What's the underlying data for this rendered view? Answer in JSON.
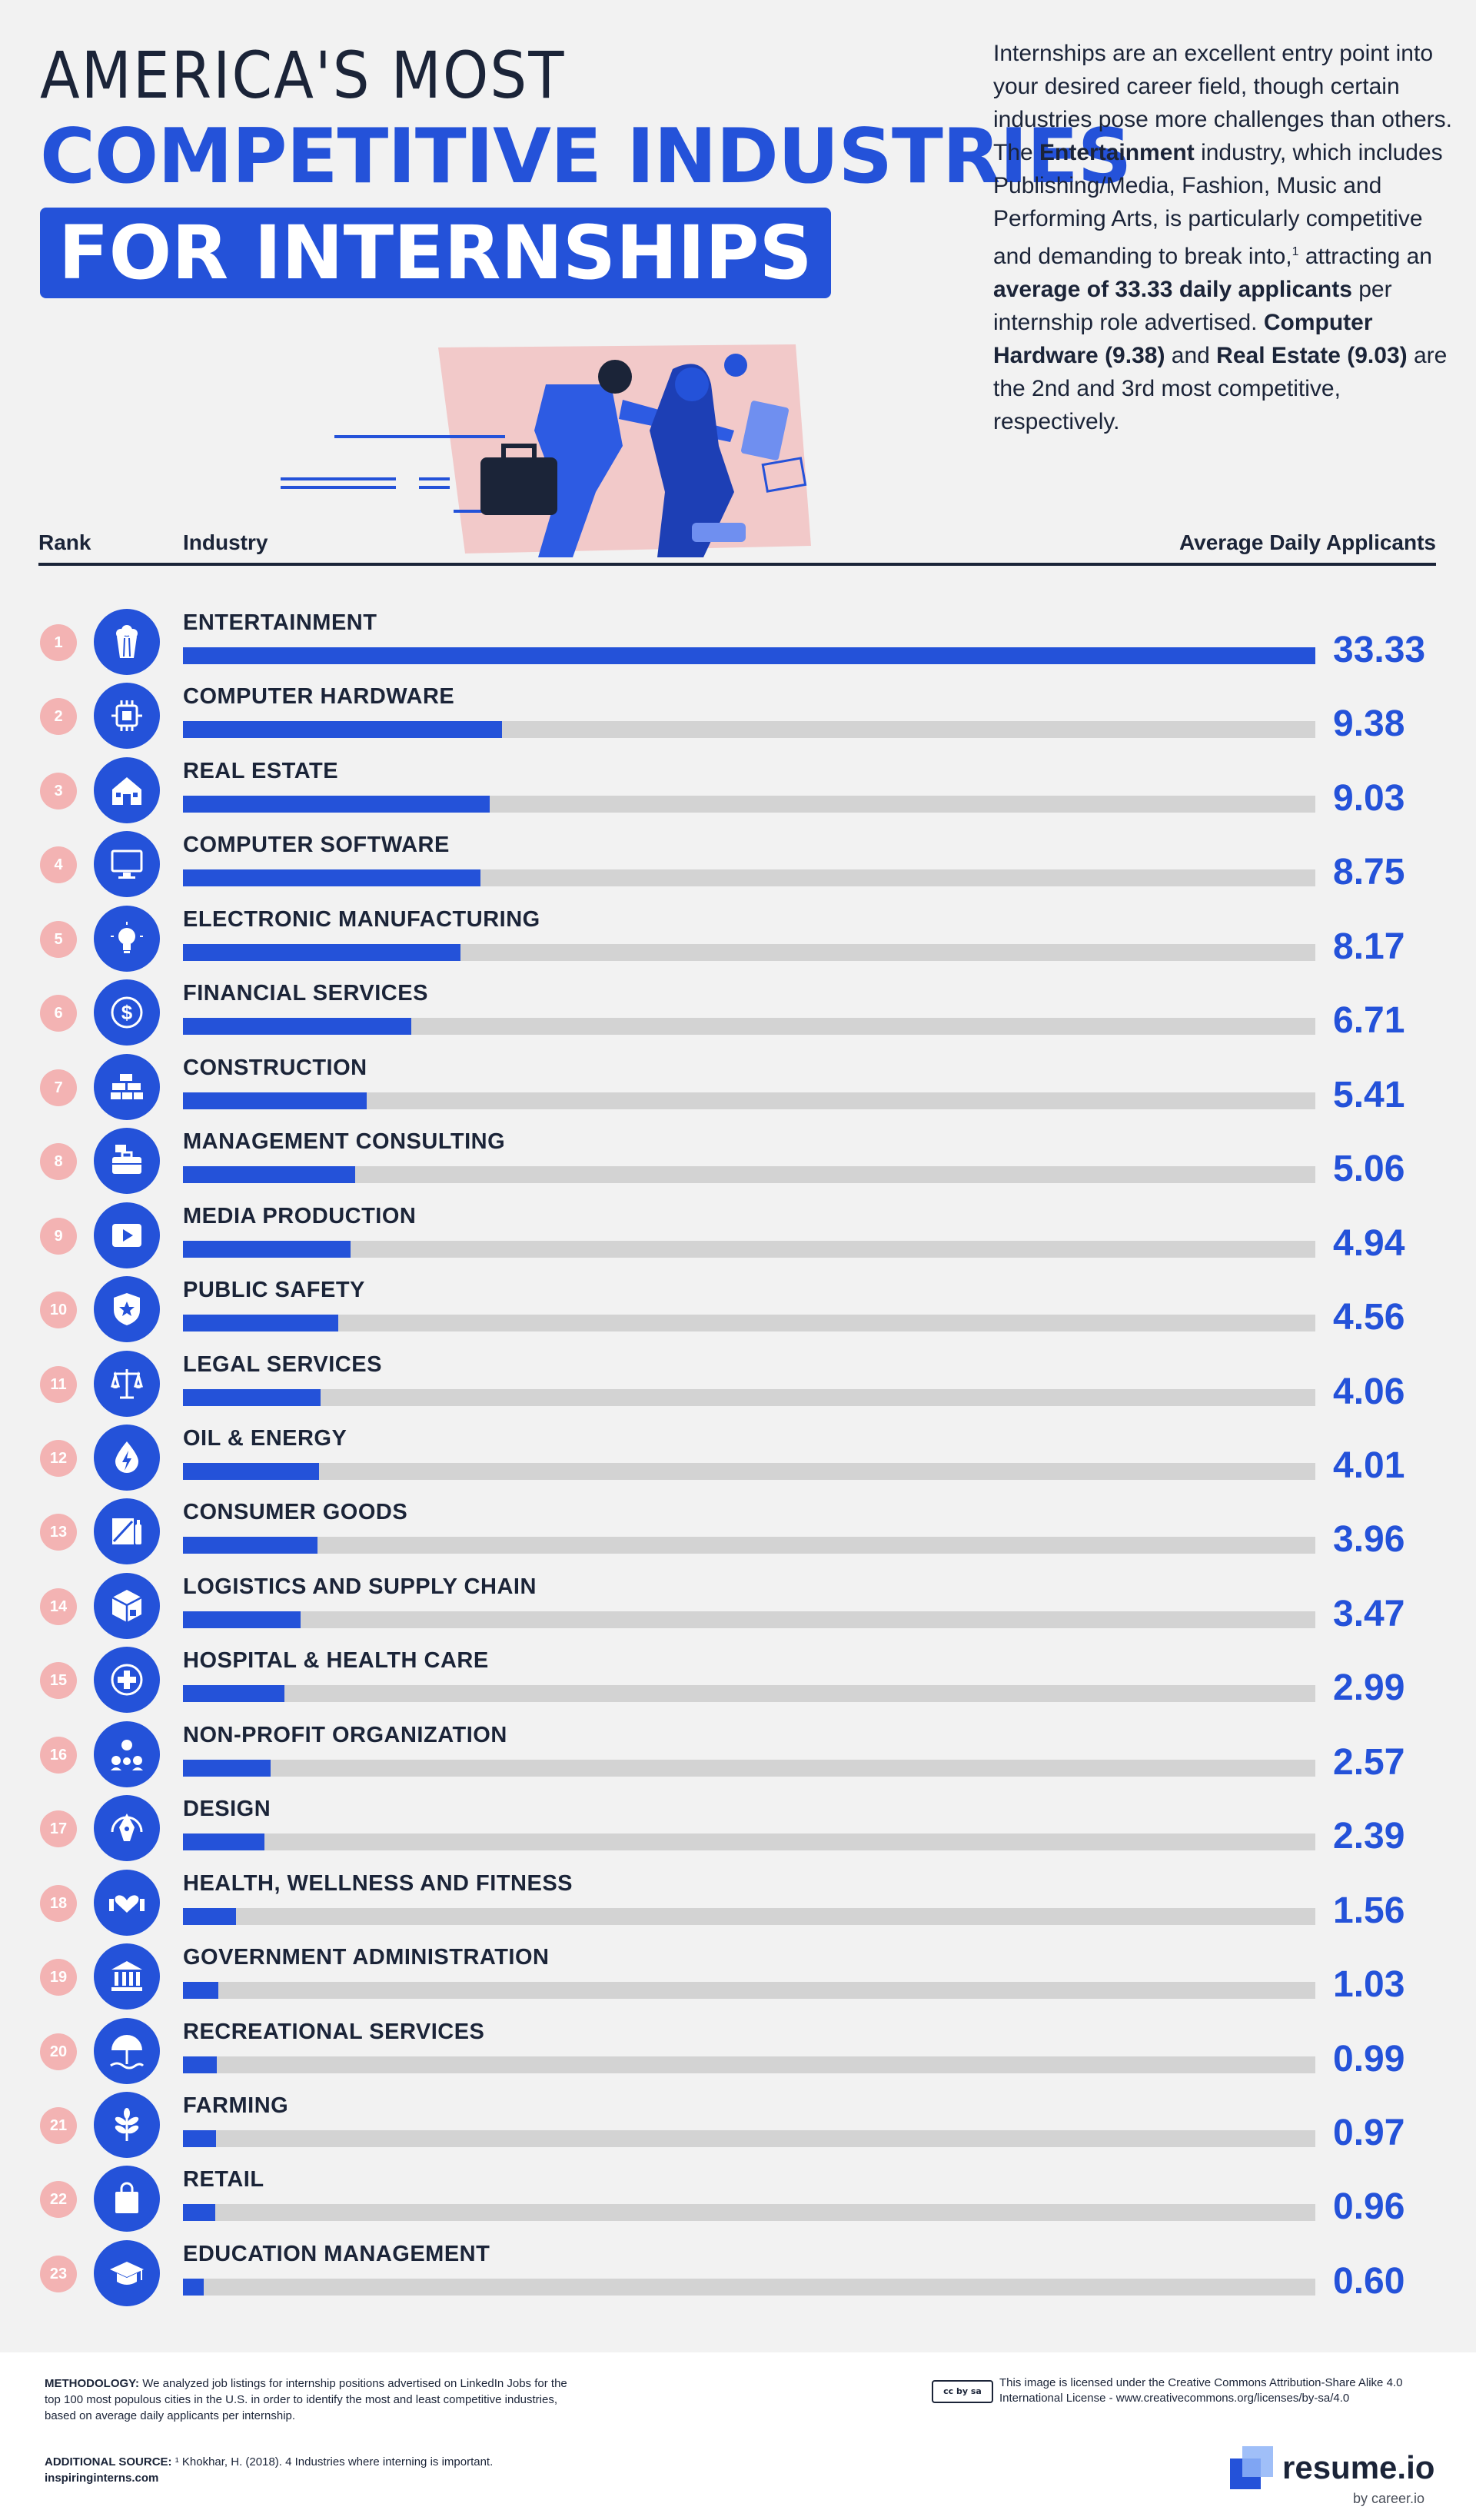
{
  "title": {
    "line1": "AMERICA'S MOST",
    "line2": "COMPETITIVE INDUSTRIES",
    "line3": "FOR INTERNSHIPS"
  },
  "intro": {
    "p1": "Internships are an excellent entry point into your desired career field, though certain industries pose more challenges than others. The ",
    "b1": "Entertainment",
    "p2": " industry, which includes Publishing/Media, Fashion, Music and Performing Arts, is particularly competitive and demanding to break into,",
    "sup": "1",
    "p3": " attracting an ",
    "b2": "average of 33.33 daily applicants",
    "p4": " per internship role advertised. ",
    "b3": "Computer Hardware (9.38)",
    "p5": " and ",
    "b4": "Real Estate (9.03)",
    "p6": " are the 2nd and 3rd most competitive, respectively."
  },
  "headers": {
    "rank": "Rank",
    "industry": "Industry",
    "value": "Average Daily Applicants"
  },
  "colors": {
    "accent": "#2452d9",
    "track": "#d3d3d3",
    "rank_badge": "#f3b3b3",
    "text": "#1b2438"
  },
  "chart_data": {
    "type": "bar",
    "orientation": "horizontal",
    "xlim": [
      0,
      33.33
    ],
    "categories": [
      "ENTERTAINMENT",
      "COMPUTER HARDWARE",
      "REAL ESTATE",
      "COMPUTER SOFTWARE",
      "ELECTRONIC MANUFACTURING",
      "FINANCIAL SERVICES",
      "CONSTRUCTION",
      "MANAGEMENT CONSULTING",
      "MEDIA PRODUCTION",
      "PUBLIC SAFETY",
      "LEGAL SERVICES",
      "OIL & ENERGY",
      "CONSUMER GOODS",
      "LOGISTICS AND SUPPLY CHAIN",
      "HOSPITAL & HEALTH CARE",
      "NON-PROFIT ORGANIZATION",
      "DESIGN",
      "HEALTH, WELLNESS AND FITNESS",
      "GOVERNMENT ADMINISTRATION",
      "RECREATIONAL SERVICES",
      "FARMING",
      "RETAIL",
      "EDUCATION MANAGEMENT"
    ],
    "values": [
      33.33,
      9.38,
      9.03,
      8.75,
      8.17,
      6.71,
      5.41,
      5.06,
      4.94,
      4.56,
      4.06,
      4.01,
      3.96,
      3.47,
      2.99,
      2.57,
      2.39,
      1.56,
      1.03,
      0.99,
      0.97,
      0.96,
      0.6
    ],
    "value_labels": [
      "33.33",
      "9.38",
      "9.03",
      "8.75",
      "8.17",
      "6.71",
      "5.41",
      "5.06",
      "4.94",
      "4.56",
      "4.06",
      "4.01",
      "3.96",
      "3.47",
      "2.99",
      "2.57",
      "2.39",
      "1.56",
      "1.03",
      "0.99",
      "0.97",
      "0.96",
      "0.60"
    ],
    "ranks": [
      "1",
      "2",
      "3",
      "4",
      "5",
      "6",
      "7",
      "8",
      "9",
      "10",
      "11",
      "12",
      "13",
      "14",
      "15",
      "16",
      "17",
      "18",
      "19",
      "20",
      "21",
      "22",
      "23"
    ],
    "icons": [
      "popcorn-icon",
      "chip-icon",
      "house-icon",
      "monitor-icon",
      "lightbulb-icon",
      "dollar-icon",
      "bricks-icon",
      "briefcase-icon",
      "play-icon",
      "badge-icon",
      "scales-icon",
      "energy-drop-icon",
      "package-icon",
      "boxes-icon",
      "medical-cross-icon",
      "people-network-icon",
      "pen-nib-icon",
      "dumbbell-heart-icon",
      "government-building-icon",
      "beach-umbrella-icon",
      "plant-icon",
      "shopping-bag-icon",
      "graduation-cap-icon"
    ]
  },
  "footer": {
    "methodology_label": "METHODOLOGY:",
    "methodology_text": " We analyzed job listings for internship positions advertised on LinkedIn Jobs for the top 100 most populous cities in the U.S. in order to identify the most and least competitive industries, based on average daily applicants per internship.",
    "source_label": "ADDITIONAL SOURCE:",
    "source_text": " ¹ Khokhar, H. (2018). 4 Industries where interning is important.",
    "source_site": "inspiringinterns.com",
    "license_badge": "cc by sa",
    "license_text": "This image is licensed under the Creative Commons Attribution-Share Alike 4.0 International License - www.creativecommons.org/licenses/by-sa/4.0",
    "logo_text": "resume.io",
    "byline": "by career.io"
  }
}
